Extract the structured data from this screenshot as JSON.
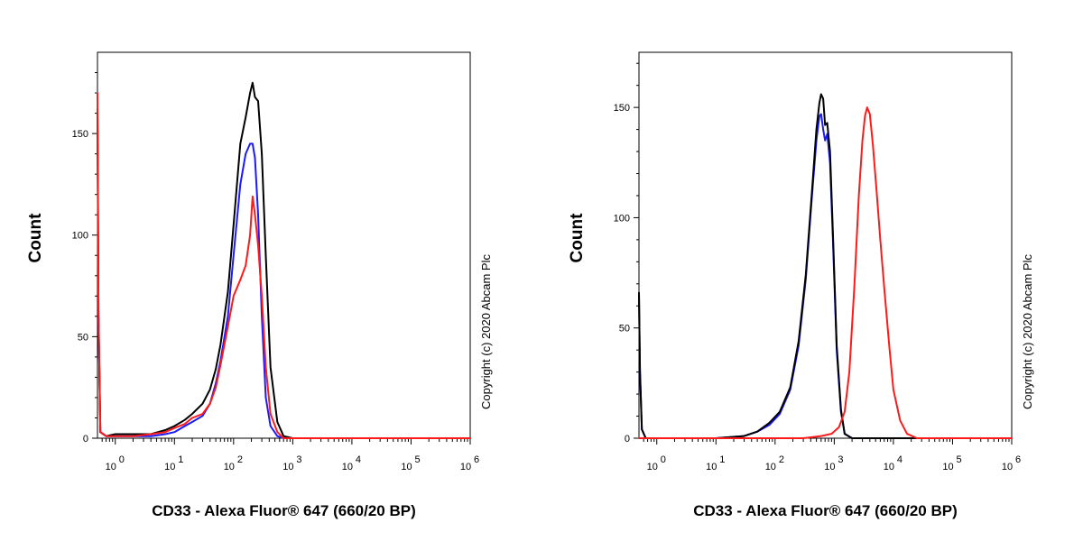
{
  "chart_data": [
    {
      "type": "line",
      "xlabel": "CD33 - Alexa Fluor® 647 (660/20 BP)",
      "ylabel": "Count",
      "x_scale": "log",
      "xlim": [
        0.5,
        1000000
      ],
      "ylim": [
        0,
        190
      ],
      "y_ticks": [
        {
          "value": 0,
          "label": "0"
        },
        {
          "value": 50,
          "label": "50"
        },
        {
          "value": 100,
          "label": "100"
        },
        {
          "value": 150,
          "label": "150"
        }
      ],
      "x_ticks": [
        {
          "value": 1,
          "base": "10",
          "exp": "0"
        },
        {
          "value": 10,
          "base": "10",
          "exp": "1"
        },
        {
          "value": 100,
          "base": "10",
          "exp": "2"
        },
        {
          "value": 1000,
          "base": "10",
          "exp": "3"
        },
        {
          "value": 10000,
          "base": "10",
          "exp": "4"
        },
        {
          "value": 100000,
          "base": "10",
          "exp": "5"
        },
        {
          "value": 1000000,
          "base": "10",
          "exp": "6"
        }
      ],
      "copyright": "Copyright (c) 2020 Abcam Plc",
      "series": [
        {
          "color": "#1a1aff",
          "x": [
            0.5,
            0.52,
            0.56,
            0.7,
            1,
            2,
            4,
            7,
            10,
            15,
            20,
            30,
            40,
            50,
            60,
            80,
            100,
            130,
            160,
            190,
            210,
            230,
            260,
            300,
            350,
            420,
            550,
            700,
            1000,
            1000000
          ],
          "y": [
            160,
            60,
            3,
            1,
            1,
            1,
            1,
            2,
            3,
            6,
            8,
            11,
            17,
            27,
            38,
            60,
            90,
            125,
            140,
            145,
            145,
            138,
            110,
            60,
            20,
            6,
            1,
            0,
            0,
            0
          ]
        },
        {
          "color": "#000000",
          "x": [
            0.5,
            0.52,
            0.56,
            0.7,
            1,
            2,
            4,
            7,
            10,
            15,
            20,
            30,
            40,
            50,
            60,
            80,
            100,
            130,
            160,
            190,
            210,
            230,
            260,
            300,
            350,
            420,
            550,
            700,
            1000,
            1000000
          ],
          "y": [
            162,
            62,
            3,
            1,
            2,
            2,
            2,
            4,
            6,
            9,
            12,
            17,
            24,
            34,
            46,
            72,
            105,
            145,
            158,
            170,
            175,
            168,
            166,
            140,
            90,
            35,
            8,
            1,
            0,
            0
          ]
        },
        {
          "color": "#ff1a1a",
          "x": [
            0.5,
            0.52,
            0.56,
            0.7,
            1,
            2,
            4,
            7,
            10,
            15,
            20,
            30,
            40,
            50,
            60,
            80,
            100,
            130,
            160,
            190,
            210,
            230,
            260,
            300,
            350,
            420,
            550,
            700,
            1000,
            1000000
          ],
          "y": [
            170,
            64,
            3,
            1,
            1,
            1,
            2,
            3,
            5,
            7,
            10,
            12,
            17,
            25,
            36,
            55,
            70,
            78,
            85,
            100,
            119,
            110,
            95,
            70,
            35,
            12,
            3,
            0,
            0,
            0
          ]
        }
      ]
    },
    {
      "type": "line",
      "xlabel": "CD33 - Alexa Fluor® 647 (660/20 BP)",
      "ylabel": "Count",
      "x_scale": "log",
      "xlim": [
        0.5,
        1000000
      ],
      "ylim": [
        0,
        175
      ],
      "y_ticks": [
        {
          "value": 0,
          "label": "0"
        },
        {
          "value": 50,
          "label": "50"
        },
        {
          "value": 100,
          "label": "100"
        },
        {
          "value": 150,
          "label": "150"
        }
      ],
      "x_ticks": [
        {
          "value": 1,
          "base": "10",
          "exp": "0"
        },
        {
          "value": 10,
          "base": "10",
          "exp": "1"
        },
        {
          "value": 100,
          "base": "10",
          "exp": "2"
        },
        {
          "value": 1000,
          "base": "10",
          "exp": "3"
        },
        {
          "value": 10000,
          "base": "10",
          "exp": "4"
        },
        {
          "value": 100000,
          "base": "10",
          "exp": "5"
        },
        {
          "value": 1000000,
          "base": "10",
          "exp": "6"
        }
      ],
      "copyright": "Copyright (c) 2020 Abcam Plc",
      "series": [
        {
          "color": "#1a1aff",
          "x": [
            0.5,
            0.52,
            0.56,
            0.65,
            1,
            10,
            30,
            50,
            80,
            120,
            180,
            250,
            330,
            420,
            500,
            560,
            600,
            650,
            700,
            760,
            850,
            950,
            1100,
            1300,
            1500,
            2000,
            1000000
          ],
          "y": [
            65,
            30,
            4,
            0,
            0,
            0,
            1,
            3,
            6,
            11,
            22,
            42,
            72,
            110,
            135,
            146,
            147,
            140,
            135,
            138,
            125,
            90,
            40,
            12,
            2,
            0,
            0
          ]
        },
        {
          "color": "#000000",
          "x": [
            0.5,
            0.52,
            0.56,
            0.65,
            1,
            10,
            30,
            50,
            80,
            120,
            180,
            250,
            330,
            420,
            500,
            560,
            600,
            650,
            700,
            760,
            850,
            950,
            1100,
            1300,
            1500,
            2000,
            1000000
          ],
          "y": [
            66,
            31,
            4,
            0,
            0,
            0,
            1,
            3,
            7,
            12,
            23,
            44,
            74,
            112,
            140,
            152,
            156,
            154,
            142,
            143,
            130,
            93,
            42,
            13,
            2,
            0,
            0
          ]
        },
        {
          "color": "#ff1a1a",
          "x": [
            0.5,
            0.6,
            1,
            100,
            300,
            600,
            900,
            1200,
            1500,
            1800,
            2200,
            2600,
            3000,
            3300,
            3600,
            4000,
            4500,
            5200,
            6000,
            7000,
            8500,
            10000,
            13000,
            17000,
            25000,
            1000000
          ],
          "y": [
            0,
            0,
            0,
            0,
            0,
            1,
            2,
            5,
            12,
            30,
            70,
            110,
            135,
            146,
            150,
            147,
            133,
            112,
            90,
            68,
            42,
            22,
            8,
            2,
            0,
            0
          ]
        }
      ]
    }
  ]
}
